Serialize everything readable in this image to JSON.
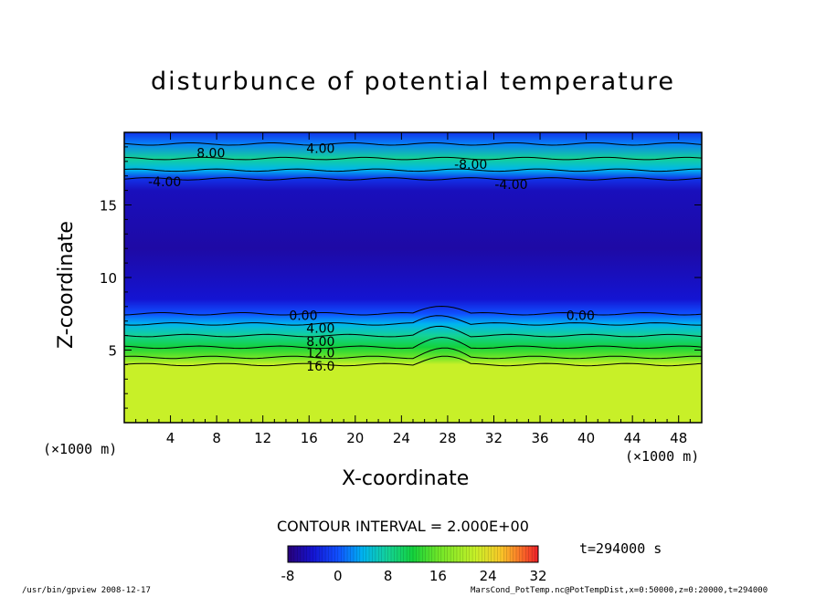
{
  "chart_data": {
    "type": "heatmap",
    "title": "disturbunce of potential temperature",
    "xlabel": "X-coordinate",
    "ylabel": "Z-coordinate",
    "x_unit": "(×1000 m)",
    "xlim": [
      0,
      50
    ],
    "ylim": [
      0,
      20
    ],
    "x_ticks": [
      "4",
      "8",
      "12",
      "16",
      "20",
      "24",
      "28",
      "32",
      "36",
      "40",
      "44",
      "48"
    ],
    "y_ticks": [
      "5",
      "10",
      "15"
    ],
    "contour_interval": "CONTOUR INTERVAL = 2.000E+00",
    "contour_labels": [
      {
        "text": "8.00",
        "x": 7.5,
        "y": 18.6
      },
      {
        "text": "4.00",
        "x": 17.0,
        "y": 18.9
      },
      {
        "text": "-4.00",
        "x": 3.5,
        "y": 16.6
      },
      {
        "text": "-8.00",
        "x": 30.0,
        "y": 17.8
      },
      {
        "text": "-4.00",
        "x": 33.5,
        "y": 16.4
      },
      {
        "text": "0.00",
        "x": 15.5,
        "y": 7.4
      },
      {
        "text": "4.00",
        "x": 17.0,
        "y": 6.5
      },
      {
        "text": "8.00",
        "x": 17.0,
        "y": 5.6
      },
      {
        "text": "12.0",
        "x": 17.0,
        "y": 4.8
      },
      {
        "text": "16.0",
        "x": 17.0,
        "y": 3.9
      },
      {
        "text": "0.00",
        "x": 39.5,
        "y": 7.4
      }
    ],
    "field_profile": [
      {
        "z": 0.0,
        "value": 22
      },
      {
        "z": 4.0,
        "value": 22
      },
      {
        "z": 4.5,
        "value": 16
      },
      {
        "z": 5.2,
        "value": 12
      },
      {
        "z": 6.0,
        "value": 8
      },
      {
        "z": 6.8,
        "value": 4
      },
      {
        "z": 7.5,
        "value": 0
      },
      {
        "z": 8.5,
        "value": -4
      },
      {
        "z": 12.0,
        "value": -6
      },
      {
        "z": 16.0,
        "value": -5
      },
      {
        "z": 16.8,
        "value": -2
      },
      {
        "z": 17.4,
        "value": 4
      },
      {
        "z": 18.2,
        "value": 8
      },
      {
        "z": 19.2,
        "value": 2
      },
      {
        "z": 20.0,
        "value": -2
      }
    ],
    "colorbar": {
      "ticks": [
        "-8",
        "0",
        "8",
        "16",
        "24",
        "32"
      ],
      "range": [
        -8,
        32
      ]
    },
    "time_label": "t=294000 s"
  },
  "footer": {
    "left": "/usr/bin/gpview   2008-12-17",
    "right": "MarsCond_PotTemp.nc@PotTempDist,x=0:50000,z=0:20000,t=294000"
  },
  "colors": {
    "low": "#1a00a0",
    "mid_blue": "#1040ff",
    "cyan": "#00c8e8",
    "green": "#20d040",
    "yellow_green": "#c8f028",
    "high": "#ff2020"
  }
}
